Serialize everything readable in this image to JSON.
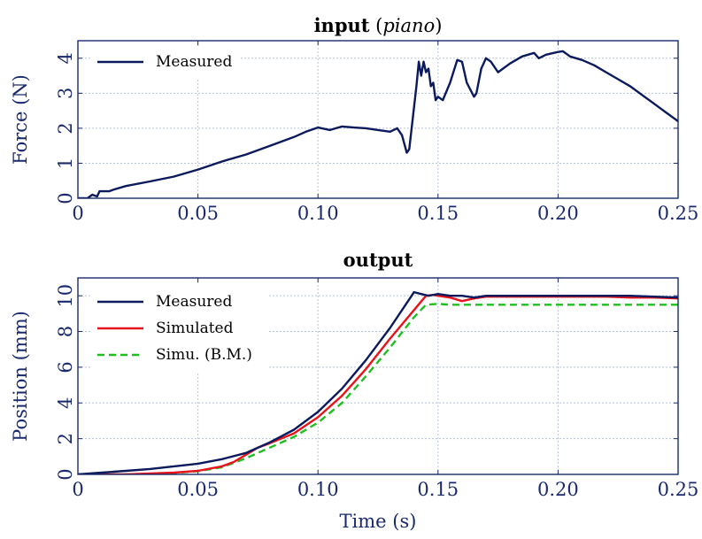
{
  "chart_data": [
    {
      "type": "line",
      "title": "input",
      "title_italic": "piano",
      "xlabel": "",
      "ylabel": "Force (N)",
      "xlim": [
        0,
        0.25
      ],
      "ylim": [
        0,
        4.5
      ],
      "xticks": [
        0,
        0.05,
        0.1,
        0.15,
        0.2,
        0.25
      ],
      "xtick_labels": [
        "0",
        "0.05",
        "0.10",
        "0.15",
        "0.20",
        "0.25"
      ],
      "yticks": [
        0,
        1,
        2,
        3,
        4
      ],
      "ytick_labels": [
        "0",
        "1",
        "2",
        "3",
        "4"
      ],
      "grid": true,
      "legend_position": "top-left",
      "series": [
        {
          "name": "Measured",
          "color": "#0b1a5c",
          "dash": "solid",
          "x": [
            0,
            0.004,
            0.006,
            0.008,
            0.009,
            0.013,
            0.015,
            0.02,
            0.03,
            0.04,
            0.05,
            0.06,
            0.07,
            0.08,
            0.09,
            0.095,
            0.1,
            0.105,
            0.11,
            0.115,
            0.12,
            0.125,
            0.13,
            0.133,
            0.135,
            0.137,
            0.138,
            0.139,
            0.141,
            0.142,
            0.143,
            0.144,
            0.145,
            0.146,
            0.147,
            0.148,
            0.149,
            0.15,
            0.152,
            0.155,
            0.158,
            0.16,
            0.162,
            0.165,
            0.166,
            0.168,
            0.17,
            0.172,
            0.175,
            0.18,
            0.185,
            0.19,
            0.192,
            0.195,
            0.2,
            0.202,
            0.205,
            0.21,
            0.215,
            0.22,
            0.225,
            0.23,
            0.235,
            0.24,
            0.245,
            0.25
          ],
          "y": [
            0,
            0,
            0.1,
            0.05,
            0.2,
            0.2,
            0.25,
            0.35,
            0.48,
            0.62,
            0.82,
            1.05,
            1.25,
            1.5,
            1.75,
            1.9,
            2.02,
            1.95,
            2.05,
            2.02,
            2.0,
            1.95,
            1.9,
            2.0,
            1.8,
            1.3,
            1.4,
            2.0,
            3.2,
            3.9,
            3.5,
            3.9,
            3.6,
            3.7,
            3.2,
            3.3,
            2.8,
            2.9,
            2.8,
            3.3,
            3.95,
            3.9,
            3.3,
            2.9,
            3.0,
            3.7,
            4.0,
            3.9,
            3.6,
            3.85,
            4.05,
            4.15,
            4.0,
            4.1,
            4.18,
            4.2,
            4.05,
            3.95,
            3.8,
            3.6,
            3.4,
            3.2,
            2.95,
            2.7,
            2.45,
            2.2
          ]
        }
      ]
    },
    {
      "type": "line",
      "title": "output",
      "xlabel": "Time (s)",
      "ylabel": "Position (mm)",
      "xlim": [
        0,
        0.25
      ],
      "ylim": [
        0,
        11
      ],
      "xticks": [
        0,
        0.05,
        0.1,
        0.15,
        0.2,
        0.25
      ],
      "xtick_labels": [
        "0",
        "0.05",
        "0.10",
        "0.15",
        "0.20",
        "0.25"
      ],
      "yticks": [
        0,
        2,
        4,
        6,
        8,
        10
      ],
      "ytick_labels": [
        "0",
        "2",
        "4",
        "6",
        "8",
        "10"
      ],
      "grid": true,
      "legend_position": "top-left",
      "series": [
        {
          "name": "Measured",
          "color": "#0b1a5c",
          "dash": "solid",
          "x": [
            0,
            0.01,
            0.02,
            0.03,
            0.04,
            0.05,
            0.06,
            0.07,
            0.08,
            0.09,
            0.1,
            0.11,
            0.12,
            0.13,
            0.138,
            0.14,
            0.143,
            0.146,
            0.15,
            0.155,
            0.16,
            0.165,
            0.17,
            0.18,
            0.19,
            0.2,
            0.21,
            0.22,
            0.23,
            0.24,
            0.25
          ],
          "y": [
            0,
            0.1,
            0.2,
            0.3,
            0.45,
            0.6,
            0.85,
            1.2,
            1.8,
            2.5,
            3.5,
            4.8,
            6.4,
            8.2,
            9.8,
            10.2,
            10.1,
            10.0,
            10.1,
            10.0,
            10.0,
            9.9,
            10.0,
            10.0,
            10.0,
            10.0,
            10.0,
            10.0,
            10.0,
            9.95,
            9.9
          ]
        },
        {
          "name": "Simulated",
          "color": "#e8141c",
          "dash": "solid",
          "x": [
            0,
            0.01,
            0.02,
            0.03,
            0.04,
            0.05,
            0.06,
            0.065,
            0.07,
            0.075,
            0.08,
            0.09,
            0.1,
            0.11,
            0.12,
            0.13,
            0.14,
            0.145,
            0.148,
            0.15,
            0.155,
            0.16,
            0.165,
            0.17,
            0.18,
            0.19,
            0.2,
            0.21,
            0.22,
            0.23,
            0.24,
            0.25
          ],
          "y": [
            0,
            0,
            0,
            0.05,
            0.1,
            0.2,
            0.45,
            0.7,
            1.1,
            1.5,
            1.75,
            2.3,
            3.2,
            4.4,
            5.9,
            7.6,
            9.2,
            10.0,
            10.05,
            10.0,
            9.9,
            9.7,
            9.85,
            9.95,
            9.95,
            9.95,
            9.95,
            9.95,
            9.95,
            9.9,
            9.9,
            9.85
          ]
        },
        {
          "name": "Simu. (B.M.)",
          "color": "#1fbf1f",
          "dash": "dashed",
          "x": [
            0,
            0.01,
            0.02,
            0.03,
            0.04,
            0.05,
            0.06,
            0.07,
            0.08,
            0.09,
            0.1,
            0.11,
            0.12,
            0.13,
            0.14,
            0.145,
            0.15,
            0.155,
            0.16,
            0.17,
            0.18,
            0.19,
            0.2,
            0.21,
            0.22,
            0.23,
            0.24,
            0.25
          ],
          "y": [
            0,
            0,
            0,
            0.02,
            0.08,
            0.18,
            0.4,
            0.9,
            1.5,
            2.1,
            2.9,
            4.0,
            5.5,
            7.1,
            8.8,
            9.5,
            9.55,
            9.5,
            9.5,
            9.5,
            9.5,
            9.5,
            9.5,
            9.5,
            9.5,
            9.5,
            9.5,
            9.5
          ]
        }
      ]
    }
  ]
}
